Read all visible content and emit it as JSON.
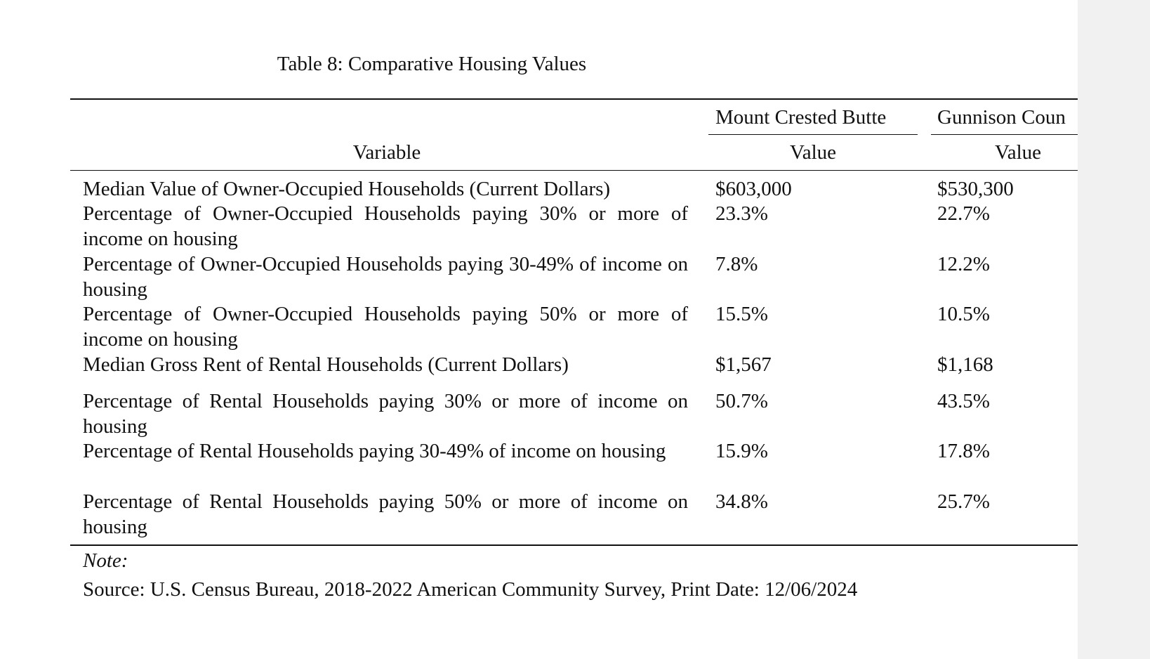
{
  "title": "Table 8: Comparative Housing Values",
  "table": {
    "group_headers": [
      "Mount Crested Butte",
      "Gunnison Coun"
    ],
    "columns": [
      "Variable",
      "Value",
      "Value"
    ],
    "rows": [
      [
        "Median Value of Owner-Occupied Households (Current Dollars)",
        "$603,000",
        "$530,300"
      ],
      [
        "Percentage of Owner-Occupied Households paying 30% or more of income on housing",
        "23.3%",
        "22.7%"
      ],
      [
        "Percentage of Owner-Occupied Households paying 30-49% of income on housing",
        "7.8%",
        "12.2%"
      ],
      [
        "Percentage of Owner-Occupied Households paying 50% or more of income on housing",
        "15.5%",
        "10.5%"
      ],
      [
        "Median Gross Rent of Rental Households (Current Dollars)",
        "$1,567",
        "$1,168"
      ],
      [
        "Percentage of Rental Households paying 30% or more of income on housing",
        "50.7%",
        "43.5%"
      ],
      [
        "Percentage of Rental Households paying 30-49% of income on housing",
        "15.9%",
        "17.8%"
      ],
      [
        "Percentage of Rental Households paying 50% or more of income on housing",
        "34.8%",
        "25.7%"
      ]
    ]
  },
  "note": {
    "label": "Note:",
    "source": "Source: U.S. Census Bureau, 2018-2022 American Community Survey, Print Date: 12/06/2024"
  }
}
